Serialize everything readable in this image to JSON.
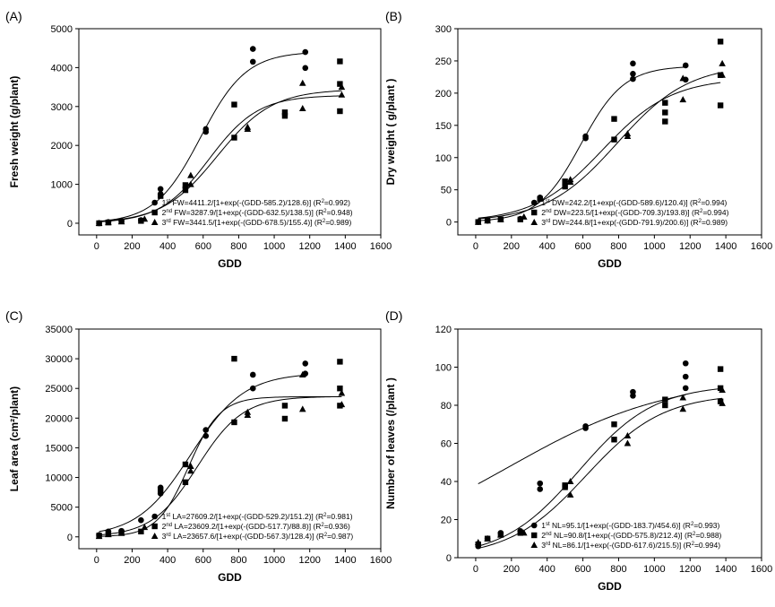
{
  "chart_data": [
    {
      "panel": "(A)",
      "type": "scatter",
      "xlabel": "GDD",
      "ylabel": "Fresh weight (g/plant)",
      "xlim": [
        -100,
        1600
      ],
      "xticks": [
        0,
        200,
        400,
        600,
        800,
        1000,
        1200,
        1400,
        1600
      ],
      "ylim": [
        -300,
        5000
      ],
      "yticks": [
        0,
        1000,
        2000,
        3000,
        4000,
        5000
      ],
      "series": [
        {
          "marker": "circle",
          "legend": "1st FW=4411.2/[1+exp(-(GDD-585.2)/128.6)] (R2=0.992)",
          "model": {
            "a": 4411.2,
            "x0": 585.2,
            "b": 128.6
          },
          "x": [
            14,
            66,
            140,
            250,
            360,
            360,
            500,
            615,
            615,
            880,
            880,
            1175,
            1175
          ],
          "y": [
            0,
            30,
            60,
            80,
            880,
            750,
            920,
            2350,
            2420,
            4150,
            4480,
            4400,
            3990
          ]
        },
        {
          "marker": "square",
          "legend": "2nd FW=3287.9/[1+exp(-(GDD-632.5)/138.5)] (R2=0.948)",
          "model": {
            "a": 3287.9,
            "x0": 632.5,
            "b": 138.5
          },
          "x": [
            14,
            66,
            140,
            250,
            360,
            500,
            500,
            775,
            775,
            1060,
            1060,
            1370,
            1370,
            1370
          ],
          "y": [
            0,
            20,
            50,
            60,
            700,
            980,
            850,
            3050,
            2200,
            2760,
            2850,
            4160,
            3580,
            2880
          ]
        },
        {
          "marker": "triangle",
          "legend": "3rd FW=3441.5/[1+exp(-(GDD-678.5)/155.4)] (R2=0.989)",
          "model": {
            "a": 3441.5,
            "x0": 678.5,
            "b": 155.4
          },
          "x": [
            14,
            66,
            140,
            270,
            530,
            530,
            850,
            850,
            1160,
            1160,
            1380,
            1380
          ],
          "y": [
            0,
            20,
            40,
            110,
            1000,
            1230,
            2420,
            2470,
            3600,
            2950,
            3300,
            3500
          ]
        }
      ]
    },
    {
      "panel": "(B)",
      "type": "scatter",
      "xlabel": "GDD",
      "ylabel": "Dry weight ( g/plant )",
      "xlim": [
        -100,
        1600
      ],
      "xticks": [
        0,
        200,
        400,
        600,
        800,
        1000,
        1200,
        1400,
        1600
      ],
      "ylim": [
        -20,
        300
      ],
      "yticks": [
        0,
        50,
        100,
        150,
        200,
        250,
        300
      ],
      "series": [
        {
          "marker": "circle",
          "legend": "1st DW=242.2/[1+exp(-(GDD-589.6)/120.4)] (R2=0.994)",
          "model": {
            "a": 242.2,
            "x0": 589.6,
            "b": 120.4
          },
          "x": [
            14,
            66,
            140,
            250,
            360,
            615,
            615,
            880,
            880,
            880,
            1175,
            1175
          ],
          "y": [
            0,
            2,
            4,
            5,
            38,
            130,
            133,
            222,
            230,
            246,
            243,
            221
          ]
        },
        {
          "marker": "square",
          "legend": "2nd DW=223.5/[1+exp(-(GDD-709.3)/193.8)] (R2=0.994)",
          "model": {
            "a": 223.5,
            "x0": 709.3,
            "b": 193.8
          },
          "x": [
            14,
            66,
            140,
            250,
            360,
            500,
            500,
            775,
            775,
            1060,
            1060,
            1060,
            1370,
            1370,
            1370
          ],
          "y": [
            0,
            3,
            4,
            4,
            36,
            63,
            55,
            160,
            128,
            156,
            170,
            185,
            280,
            228,
            181
          ]
        },
        {
          "marker": "triangle",
          "legend": "3rd DW=244.8/[1+exp(-(GDD-791.9)/200.6)] (R2=0.989)",
          "model": {
            "a": 244.8,
            "x0": 791.9,
            "b": 200.6
          },
          "x": [
            14,
            66,
            140,
            270,
            530,
            530,
            850,
            850,
            1160,
            1160,
            1380,
            1380
          ],
          "y": [
            0,
            2,
            4,
            8,
            62,
            66,
            133,
            137,
            190,
            223,
            246,
            228
          ]
        }
      ]
    },
    {
      "panel": "(C)",
      "type": "scatter",
      "xlabel": "GDD",
      "ylabel": "Leaf area (cm²/plant)",
      "xlim": [
        -100,
        1600
      ],
      "xticks": [
        0,
        200,
        400,
        600,
        800,
        1000,
        1200,
        1400,
        1600
      ],
      "ylim": [
        -2000,
        35000
      ],
      "yticks": [
        0,
        5000,
        10000,
        15000,
        20000,
        25000,
        30000,
        35000
      ],
      "series": [
        {
          "marker": "circle",
          "legend": "1st LA=27609.2/[1+exp(-(GDD-529.2)/151.2)] (R2=0.981)",
          "model": {
            "a": 27609.2,
            "x0": 529.2,
            "b": 151.2
          },
          "x": [
            14,
            66,
            140,
            250,
            360,
            360,
            615,
            615,
            880,
            880,
            1175,
            1175
          ],
          "y": [
            300,
            900,
            1000,
            2800,
            8300,
            7300,
            17000,
            18000,
            27300,
            25000,
            29200,
            27500
          ]
        },
        {
          "marker": "square",
          "legend": "2nd LA=23609.2/[1+exp(-(GDD-517.7)/88.8)] (R2=0.936)",
          "model": {
            "a": 23609.2,
            "x0": 517.7,
            "b": 88.8
          },
          "x": [
            14,
            66,
            140,
            250,
            360,
            500,
            500,
            775,
            775,
            1060,
            1060,
            1370,
            1370,
            1370
          ],
          "y": [
            200,
            500,
            700,
            900,
            7800,
            12200,
            9200,
            30000,
            19300,
            19900,
            22100,
            29500,
            25000,
            22100
          ]
        },
        {
          "marker": "triangle",
          "legend": "3rd LA=23657.6/[1+exp(-(GDD-567.3)/128.4)] (R2=0.987)",
          "model": {
            "a": 23657.6,
            "x0": 567.3,
            "b": 128.4
          },
          "x": [
            14,
            66,
            140,
            270,
            530,
            530,
            850,
            850,
            1160,
            1160,
            1380,
            1380
          ],
          "y": [
            100,
            400,
            600,
            1600,
            11100,
            11900,
            20500,
            21000,
            21500,
            27300,
            24200,
            22300
          ]
        }
      ]
    },
    {
      "panel": "(D)",
      "type": "scatter",
      "xlabel": "GDD",
      "ylabel": "Number of leaves (/plant )",
      "xlim": [
        -100,
        1600
      ],
      "xticks": [
        0,
        200,
        400,
        600,
        800,
        1000,
        1200,
        1400,
        1600
      ],
      "ylim": [
        0,
        120
      ],
      "yticks": [
        0,
        20,
        40,
        60,
        80,
        100,
        120
      ],
      "series": [
        {
          "marker": "circle",
          "legend": "1st NL=95.1/[1+exp(-(GDD-183.7)/454.6)] (R2=0.993)",
          "model": {
            "a": 95.1,
            "x0": 183.7,
            "b": 454.6
          },
          "x": [
            14,
            66,
            140,
            250,
            360,
            360,
            615,
            615,
            880,
            880,
            1175,
            1175,
            1175
          ],
          "y": [
            6,
            10,
            13,
            14,
            39,
            36,
            69,
            68,
            85,
            87,
            102,
            95,
            89
          ]
        },
        {
          "marker": "square",
          "legend": "2nd NL=90.8/[1+exp(-(GDD-575.8)/212.4)] (R2=0.988)",
          "model": {
            "a": 90.8,
            "x0": 575.8,
            "b": 212.4
          },
          "x": [
            14,
            66,
            140,
            250,
            500,
            500,
            775,
            775,
            1060,
            1060,
            1370,
            1370,
            1370
          ],
          "y": [
            7,
            10,
            12,
            13,
            38,
            37,
            70,
            62,
            80,
            83,
            99,
            89,
            82
          ]
        },
        {
          "marker": "triangle",
          "legend": "3rd NL=86.1/[1+exp(-(GDD-617.6)/215.5)] (R2=0.994)",
          "model": {
            "a": 86.1,
            "x0": 617.6,
            "b": 215.5
          },
          "x": [
            14,
            66,
            140,
            270,
            530,
            530,
            850,
            850,
            1160,
            1160,
            1380,
            1380
          ],
          "y": [
            8,
            10,
            12,
            13,
            33,
            40,
            64,
            60,
            78,
            84,
            88,
            81
          ]
        }
      ]
    }
  ]
}
